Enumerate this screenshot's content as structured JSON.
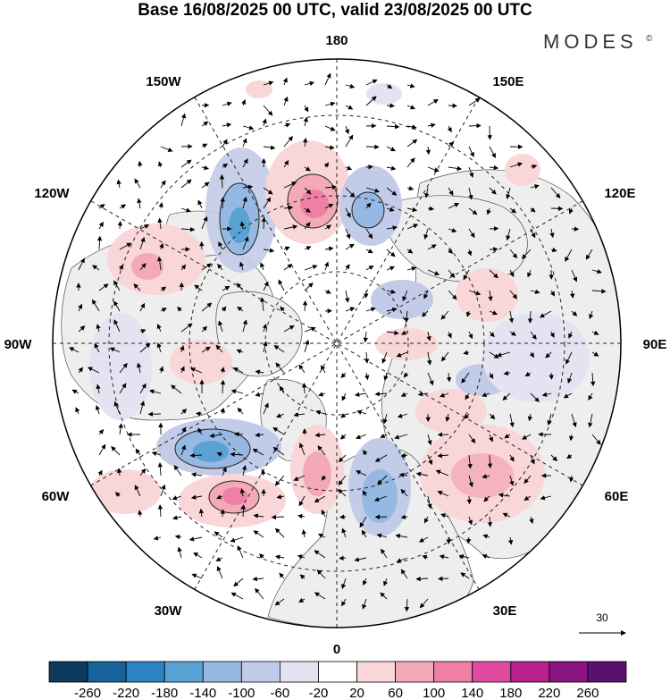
{
  "title": "Base 16/08/2025 00 UTC, valid 23/08/2025 00 UTC",
  "brand": "MODES",
  "brand_mark": "©",
  "grid_labels": {
    "top": "180",
    "bottom": "0",
    "left": "90W",
    "right": "90E",
    "upper_left": "150W",
    "upper_right": "150E",
    "left_upper": "120W",
    "right_upper": "120E",
    "left_lower": "60W",
    "right_lower": "60E",
    "lower_left": "30W",
    "lower_right": "30E"
  },
  "reference_vector": {
    "label": "30"
  },
  "colorbar": {
    "ticks": [
      "-260",
      "-220",
      "-180",
      "-140",
      "-100",
      "-60",
      "-20",
      "20",
      "60",
      "100",
      "140",
      "180",
      "220",
      "260"
    ],
    "colors": [
      "#0b3a5c",
      "#16629a",
      "#2b85c2",
      "#5aa2d4",
      "#95b9e2",
      "#c2cbe8",
      "#e3e3f2",
      "#ffffff",
      "#f9d6d8",
      "#f4aab6",
      "#ef7fa6",
      "#e04aa0",
      "#b81f8f",
      "#8a1480",
      "#5b0f6e"
    ]
  },
  "map": {
    "land_color": "#eeeeee",
    "ocean_color": "#ffffff",
    "coast_color": "#333333",
    "grid_color": "#222222",
    "negative_anomaly_color": "#4a7fc3",
    "positive_anomaly_color": "#e8548f"
  }
}
